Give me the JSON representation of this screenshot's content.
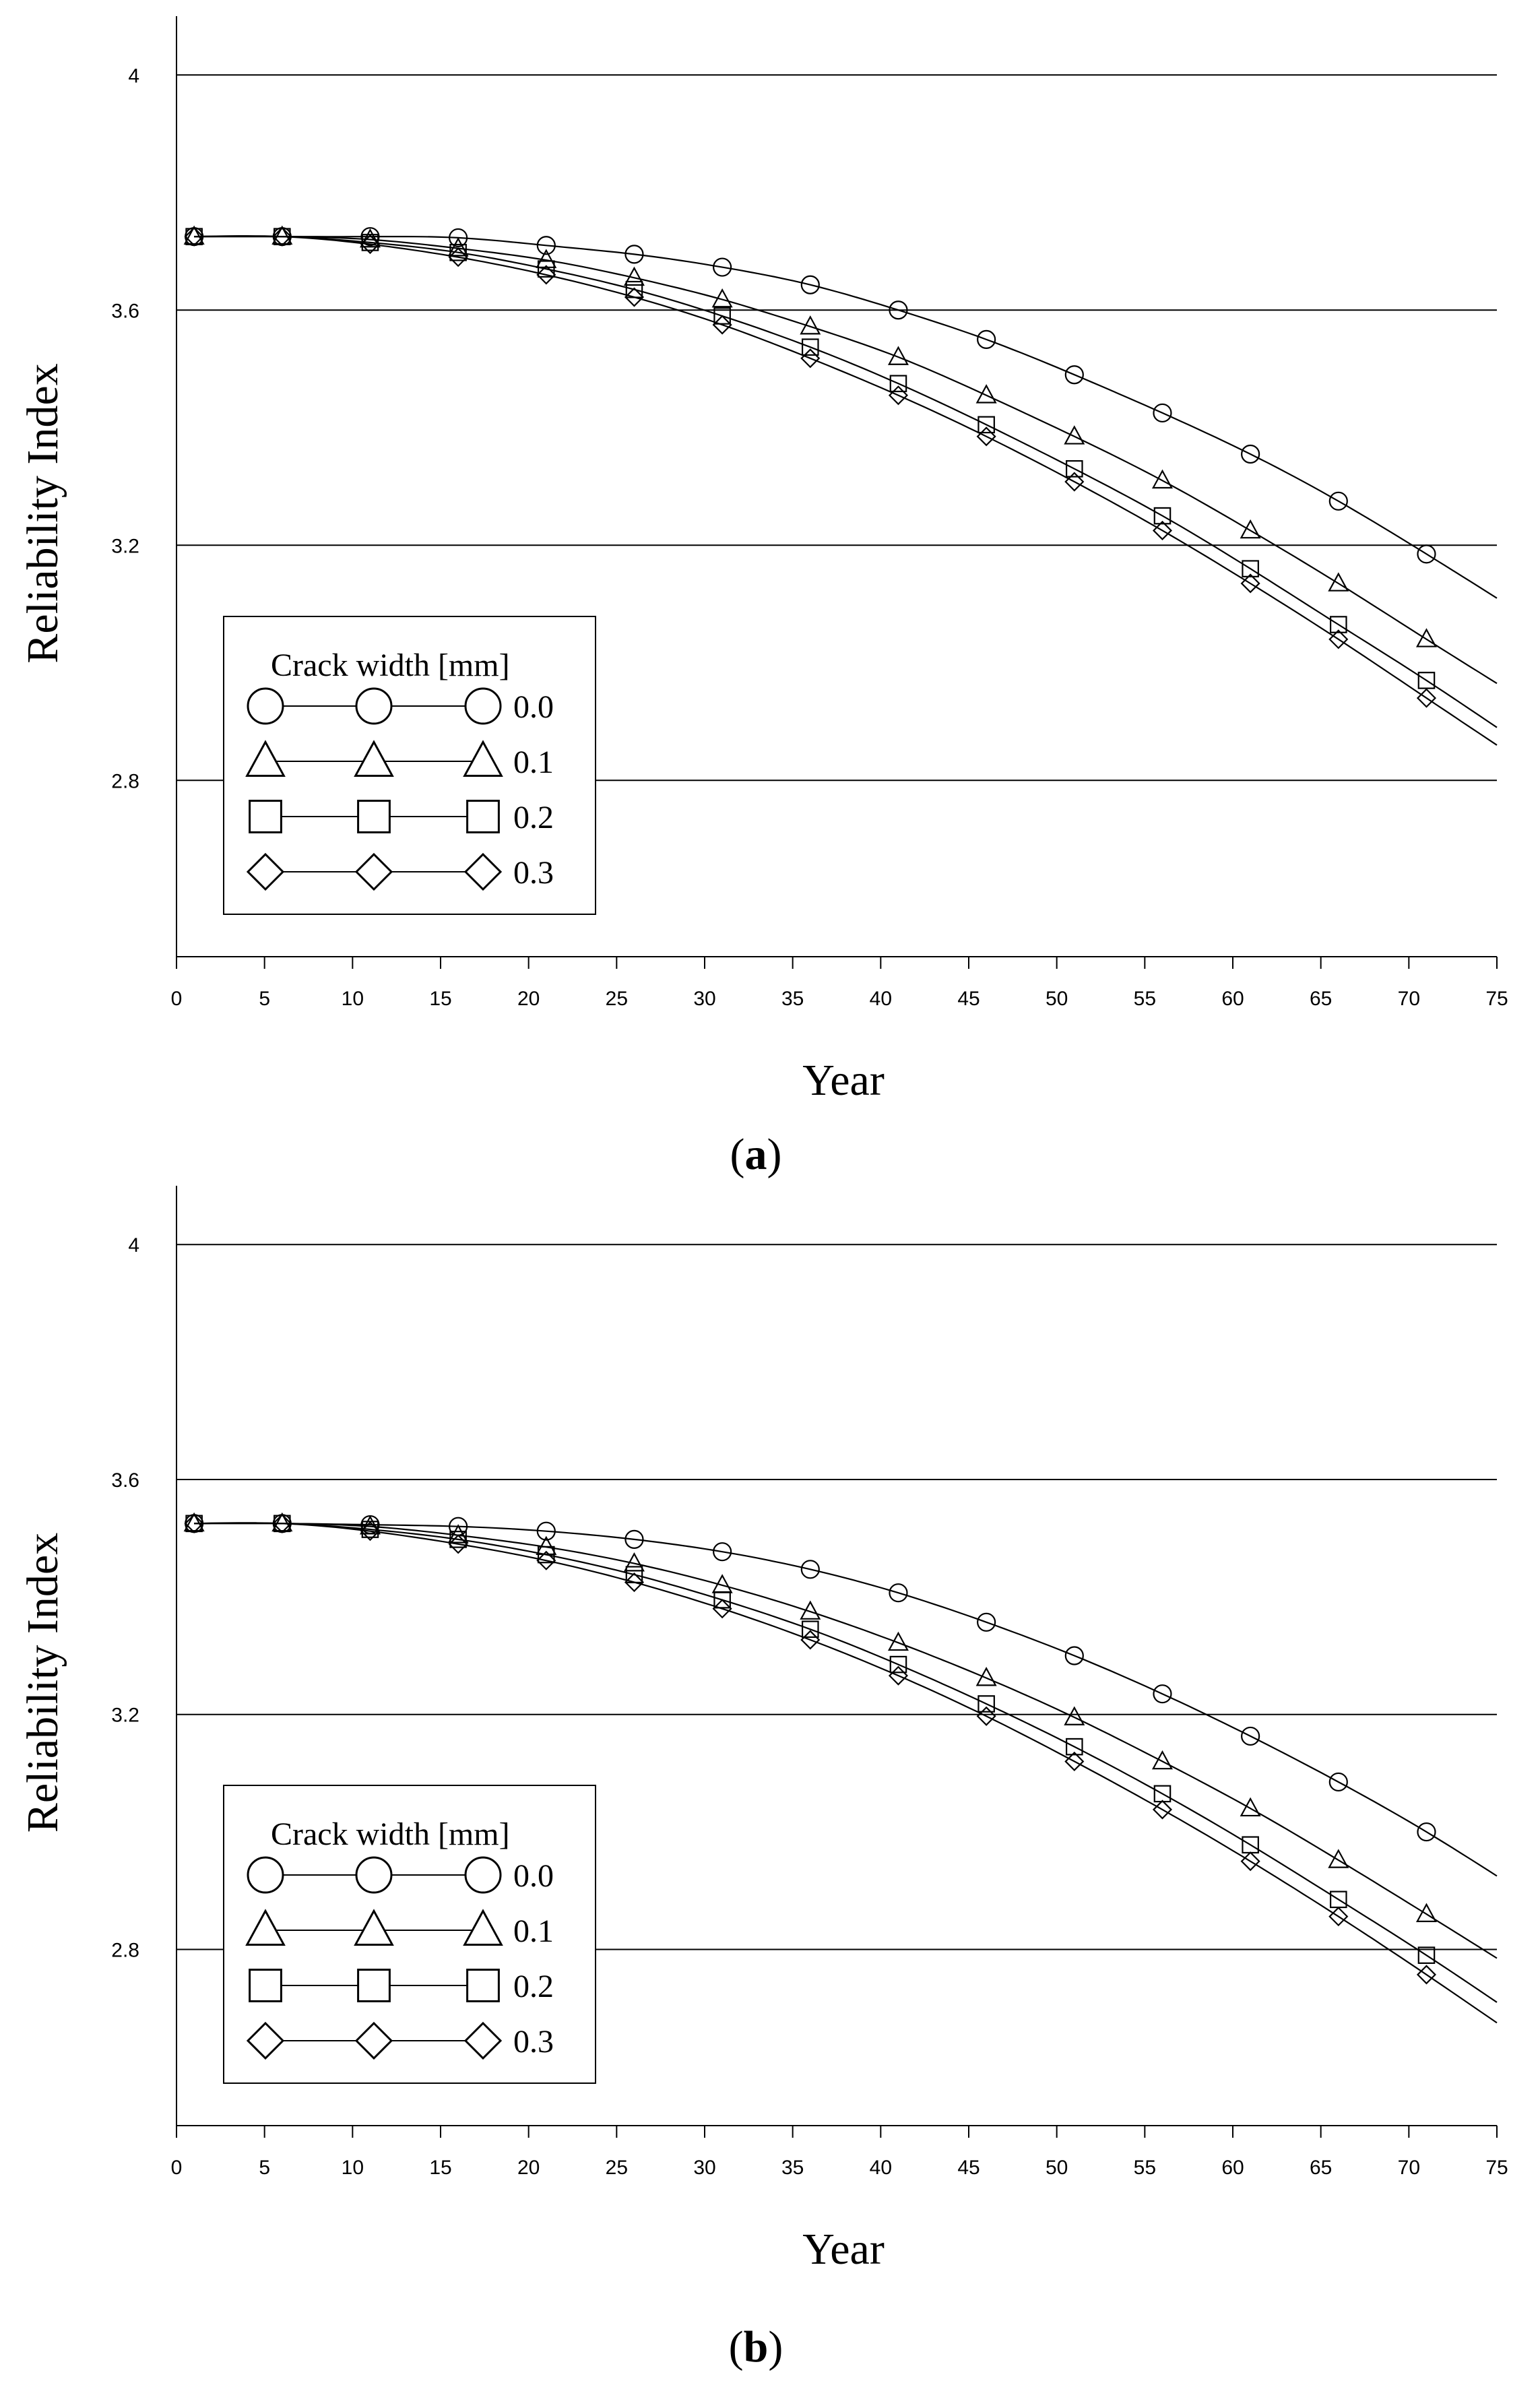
{
  "legend_title": "Crack width [mm]",
  "chart_data": [
    {
      "type": "line",
      "caption_letter": "a",
      "caption_open": "(",
      "caption_close": ")",
      "xlabel": "Year",
      "ylabel": "Reliability Index",
      "xlim": [
        0,
        75
      ],
      "ylim": [
        2.5,
        4.1
      ],
      "xticks": [
        0,
        5,
        10,
        15,
        20,
        25,
        30,
        35,
        40,
        45,
        50,
        55,
        60,
        65,
        70,
        75
      ],
      "yticks": [
        2.8,
        3.2,
        3.6,
        4
      ],
      "ytick_labels": [
        "2.8",
        "3.2",
        "3.6",
        "4"
      ],
      "grid": "horizontal",
      "legend_position": "lower-left",
      "x": [
        1,
        6,
        11,
        16,
        21,
        26,
        31,
        36,
        41,
        46,
        51,
        56,
        61,
        66,
        71
      ],
      "x_curve_end": 75,
      "series": [
        {
          "name": "0.0",
          "marker": "circle",
          "values": [
            3.725,
            3.725,
            3.725,
            3.723,
            3.71,
            3.695,
            3.673,
            3.643,
            3.6,
            3.55,
            3.49,
            3.425,
            3.355,
            3.275,
            3.185
          ],
          "end_value": 3.11
        },
        {
          "name": "0.1",
          "marker": "triangle",
          "values": [
            3.725,
            3.725,
            3.72,
            3.705,
            3.685,
            3.655,
            3.618,
            3.572,
            3.52,
            3.455,
            3.385,
            3.31,
            3.225,
            3.135,
            3.04
          ],
          "end_value": 2.965
        },
        {
          "name": "0.2",
          "marker": "square",
          "values": [
            3.725,
            3.725,
            3.715,
            3.698,
            3.67,
            3.635,
            3.59,
            3.537,
            3.475,
            3.405,
            3.33,
            3.25,
            3.16,
            3.065,
            2.97
          ],
          "end_value": 2.89
        },
        {
          "name": "0.3",
          "marker": "diamond",
          "values": [
            3.725,
            3.725,
            3.712,
            3.69,
            3.66,
            3.622,
            3.575,
            3.518,
            3.455,
            3.385,
            3.308,
            3.225,
            3.135,
            3.04,
            2.94
          ],
          "end_value": 2.86
        }
      ]
    },
    {
      "type": "line",
      "caption_letter": "b",
      "caption_open": "(",
      "caption_close": ")",
      "xlabel": "Year",
      "ylabel": "Reliability Index",
      "xlim": [
        0,
        75
      ],
      "ylim": [
        2.5,
        4.1
      ],
      "xticks": [
        0,
        5,
        10,
        15,
        20,
        25,
        30,
        35,
        40,
        45,
        50,
        55,
        60,
        65,
        70,
        75
      ],
      "yticks": [
        2.8,
        3.2,
        3.6,
        4
      ],
      "ytick_labels": [
        "2.8",
        "3.2",
        "3.6",
        "4"
      ],
      "grid": "horizontal",
      "legend_position": "lower-left",
      "x": [
        1,
        6,
        11,
        16,
        21,
        26,
        31,
        36,
        41,
        46,
        51,
        56,
        61,
        66,
        71
      ],
      "x_curve_end": 75,
      "series": [
        {
          "name": "0.0",
          "marker": "circle",
          "values": [
            3.525,
            3.525,
            3.523,
            3.52,
            3.512,
            3.498,
            3.477,
            3.447,
            3.407,
            3.357,
            3.3,
            3.235,
            3.163,
            3.085,
            3.0
          ],
          "end_value": 2.925
        },
        {
          "name": "0.1",
          "marker": "triangle",
          "values": [
            3.525,
            3.525,
            3.52,
            3.505,
            3.485,
            3.457,
            3.42,
            3.375,
            3.322,
            3.262,
            3.195,
            3.12,
            3.04,
            2.952,
            2.86
          ],
          "end_value": 2.785
        },
        {
          "name": "0.2",
          "marker": "square",
          "values": [
            3.525,
            3.525,
            3.515,
            3.498,
            3.472,
            3.438,
            3.395,
            3.345,
            3.285,
            3.218,
            3.145,
            3.065,
            2.978,
            2.885,
            2.79
          ],
          "end_value": 2.71
        },
        {
          "name": "0.3",
          "marker": "diamond",
          "values": [
            3.525,
            3.525,
            3.512,
            3.49,
            3.462,
            3.425,
            3.38,
            3.327,
            3.266,
            3.197,
            3.12,
            3.038,
            2.95,
            2.856,
            2.757
          ],
          "end_value": 2.675
        }
      ]
    }
  ]
}
